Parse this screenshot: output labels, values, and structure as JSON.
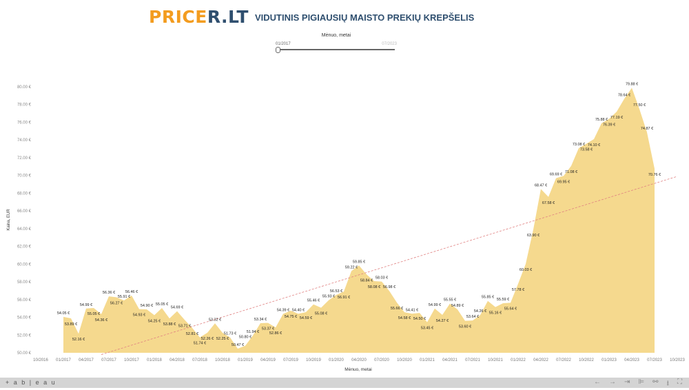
{
  "header": {
    "logo_part1": "PRICE",
    "logo_part2": "R.LT",
    "title": "VIDUTINIS PIGIAUSIŲ MAISTO PREKIŲ KREPŠELIS"
  },
  "filter": {
    "title": "Mėnuo, metai",
    "start": "01/2017",
    "end": "07/2023"
  },
  "footer": {
    "brand": "+ a b | e a u",
    "icons": [
      "undo-icon",
      "redo-icon",
      "revert-icon",
      "pause-icon",
      "share-icon",
      "download-icon",
      "fullscreen-icon"
    ]
  },
  "colors": {
    "area": "#f5d98e",
    "trend": "#e08080",
    "logo_orange": "#f39c1f",
    "logo_blue": "#2f4f6f"
  },
  "chart_data": {
    "type": "area",
    "title": "",
    "xlabel": "Mėnuo, metai",
    "ylabel": "Kaina, EUR",
    "ylim": [
      50,
      80
    ],
    "yticks": [
      "50.00 €",
      "52.00 €",
      "54.00 €",
      "56.00 €",
      "58.00 €",
      "60.00 €",
      "62.00 €",
      "64.00 €",
      "66.00 €",
      "68.00 €",
      "70.00 €",
      "72.00 €",
      "74.00 €",
      "76.00 €",
      "78.00 €",
      "80.00 €"
    ],
    "xticks": [
      "10/2016",
      "01/2017",
      "04/2017",
      "07/2017",
      "10/2017",
      "01/2018",
      "04/2018",
      "07/2018",
      "10/2018",
      "01/2019",
      "04/2019",
      "07/2019",
      "10/2019",
      "01/2020",
      "04/2020",
      "07/2020",
      "10/2020",
      "01/2021",
      "04/2021",
      "07/2021",
      "10/2021",
      "01/2022",
      "04/2022",
      "07/2022",
      "10/2022",
      "01/2023",
      "04/2023",
      "07/2023",
      "10/2023"
    ],
    "x_start": "01/2017",
    "x_end": "07/2023",
    "values": [
      54.05,
      53.89,
      52.16,
      54.99,
      55.05,
      54.36,
      56.36,
      56.27,
      55.91,
      56.46,
      54.93,
      54.9,
      54.25,
      55.05,
      53.88,
      54.69,
      53.71,
      52.81,
      51.74,
      52.26,
      53.32,
      52.25,
      51.73,
      50.47,
      50.8,
      51.94,
      53.34,
      53.37,
      52.86,
      54.39,
      54.75,
      54.4,
      54.59,
      55.46,
      55.08,
      55.93,
      56.53,
      56.91,
      59.22,
      59.85,
      58.84,
      58.08,
      58.03,
      56.98,
      55.66,
      54.58,
      54.41,
      54.5,
      53.45,
      54.99,
      54.27,
      55.55,
      54.89,
      53.6,
      53.64,
      54.26,
      55.85,
      55.16,
      55.59,
      55.64,
      57.78,
      60.03,
      63.9,
      68.47,
      67.58,
      69.69,
      69.95,
      71.08,
      73.08,
      73.58,
      74.1,
      75.88,
      76.39,
      77.19,
      78.64,
      79.88,
      77.5,
      74.87,
      70.76
    ],
    "value_suffix": " €",
    "trend_line": {
      "style": "dashed",
      "start": {
        "x": "06/2017",
        "y": 49.8
      },
      "end": {
        "x": "10/2023",
        "y": 69.9
      }
    },
    "grid": false
  }
}
